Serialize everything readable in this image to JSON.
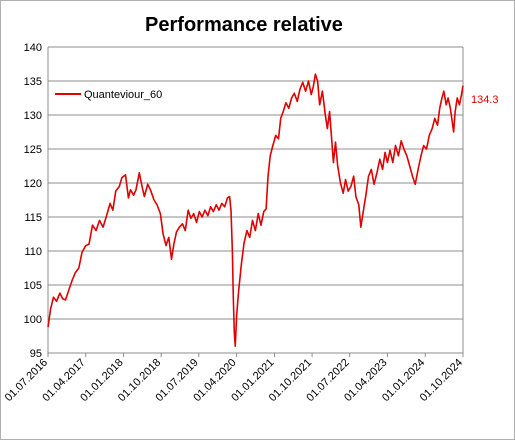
{
  "chart_data": {
    "type": "line",
    "title": "Performance relative",
    "xlabel": "",
    "ylabel": "",
    "ylim": [
      95,
      140
    ],
    "yticks": [
      95,
      100,
      105,
      110,
      115,
      120,
      125,
      130,
      135,
      140
    ],
    "xlim": [
      "2016-07-01",
      "2024-10-01"
    ],
    "xticks": [
      "01.07.2016",
      "01.04.2017",
      "01.01.2018",
      "01.10.2018",
      "01.07.2019",
      "01.04.2020",
      "01.01.2021",
      "01.10.2021",
      "01.07.2022",
      "01.04.2023",
      "01.01.2024",
      "01.10.2024"
    ],
    "grid": "horizontal",
    "legend_position": "top-left",
    "series": [
      {
        "name": "Quanteviour_60",
        "color": "#e00000",
        "last_value_label": "134.3",
        "points": [
          [
            "2016-07-01",
            98.8
          ],
          [
            "2016-07-20",
            101.5
          ],
          [
            "2016-08-10",
            103.2
          ],
          [
            "2016-09-01",
            102.6
          ],
          [
            "2016-09-25",
            103.8
          ],
          [
            "2016-10-15",
            103.0
          ],
          [
            "2016-11-05",
            102.8
          ],
          [
            "2016-11-25",
            104.0
          ],
          [
            "2016-12-20",
            105.5
          ],
          [
            "2017-01-15",
            106.8
          ],
          [
            "2017-02-10",
            107.5
          ],
          [
            "2017-03-05",
            109.8
          ],
          [
            "2017-04-01",
            110.8
          ],
          [
            "2017-04-25",
            111.0
          ],
          [
            "2017-05-20",
            113.8
          ],
          [
            "2017-06-15",
            113.0
          ],
          [
            "2017-07-10",
            114.5
          ],
          [
            "2017-08-05",
            113.5
          ],
          [
            "2017-09-01",
            115.3
          ],
          [
            "2017-09-25",
            117.0
          ],
          [
            "2017-10-15",
            116.0
          ],
          [
            "2017-11-05",
            118.8
          ],
          [
            "2017-12-01",
            119.5
          ],
          [
            "2017-12-20",
            120.8
          ],
          [
            "2018-01-15",
            121.2
          ],
          [
            "2018-02-05",
            117.8
          ],
          [
            "2018-02-20",
            119.0
          ],
          [
            "2018-03-15",
            118.2
          ],
          [
            "2018-04-01",
            119.0
          ],
          [
            "2018-04-25",
            121.5
          ],
          [
            "2018-05-15",
            119.5
          ],
          [
            "2018-06-01",
            118.0
          ],
          [
            "2018-06-25",
            119.8
          ],
          [
            "2018-07-15",
            119.0
          ],
          [
            "2018-08-10",
            117.5
          ],
          [
            "2018-09-01",
            116.8
          ],
          [
            "2018-09-25",
            115.5
          ],
          [
            "2018-10-15",
            112.5
          ],
          [
            "2018-11-05",
            110.8
          ],
          [
            "2018-11-25",
            112.0
          ],
          [
            "2018-12-15",
            108.8
          ],
          [
            "2019-01-01",
            111.0
          ],
          [
            "2019-01-20",
            112.8
          ],
          [
            "2019-02-10",
            113.5
          ],
          [
            "2019-03-05",
            114.0
          ],
          [
            "2019-03-25",
            113.0
          ],
          [
            "2019-04-15",
            116.0
          ],
          [
            "2019-05-05",
            114.8
          ],
          [
            "2019-05-25",
            115.5
          ],
          [
            "2019-06-15",
            114.2
          ],
          [
            "2019-07-05",
            115.8
          ],
          [
            "2019-07-25",
            115.0
          ],
          [
            "2019-08-15",
            116.0
          ],
          [
            "2019-09-05",
            115.2
          ],
          [
            "2019-09-25",
            116.5
          ],
          [
            "2019-10-15",
            115.8
          ],
          [
            "2019-11-05",
            116.8
          ],
          [
            "2019-11-25",
            116.0
          ],
          [
            "2019-12-15",
            117.0
          ],
          [
            "2020-01-05",
            116.5
          ],
          [
            "2020-01-25",
            117.8
          ],
          [
            "2020-02-10",
            118.0
          ],
          [
            "2020-02-20",
            116.0
          ],
          [
            "2020-03-01",
            110.0
          ],
          [
            "2020-03-08",
            103.0
          ],
          [
            "2020-03-15",
            98.0
          ],
          [
            "2020-03-22",
            96.0
          ],
          [
            "2020-04-01",
            100.5
          ],
          [
            "2020-04-15",
            104.0
          ],
          [
            "2020-05-05",
            108.0
          ],
          [
            "2020-05-25",
            111.2
          ],
          [
            "2020-06-15",
            113.0
          ],
          [
            "2020-07-05",
            112.0
          ],
          [
            "2020-07-25",
            114.5
          ],
          [
            "2020-08-15",
            113.0
          ],
          [
            "2020-09-05",
            115.5
          ],
          [
            "2020-09-25",
            113.8
          ],
          [
            "2020-10-15",
            115.8
          ],
          [
            "2020-11-01",
            116.2
          ],
          [
            "2020-11-15",
            121.0
          ],
          [
            "2020-12-01",
            124.0
          ],
          [
            "2020-12-20",
            125.5
          ],
          [
            "2021-01-10",
            127.0
          ],
          [
            "2021-01-30",
            126.5
          ],
          [
            "2021-02-15",
            129.5
          ],
          [
            "2021-03-05",
            130.5
          ],
          [
            "2021-03-25",
            131.8
          ],
          [
            "2021-04-15",
            131.0
          ],
          [
            "2021-05-05",
            132.5
          ],
          [
            "2021-05-25",
            133.2
          ],
          [
            "2021-06-15",
            132.0
          ],
          [
            "2021-07-05",
            133.8
          ],
          [
            "2021-07-25",
            134.8
          ],
          [
            "2021-08-15",
            133.5
          ],
          [
            "2021-09-05",
            135.0
          ],
          [
            "2021-09-25",
            133.0
          ],
          [
            "2021-10-10",
            134.2
          ],
          [
            "2021-10-25",
            136.0
          ],
          [
            "2021-11-10",
            135.0
          ],
          [
            "2021-11-25",
            131.5
          ],
          [
            "2021-12-15",
            133.5
          ],
          [
            "2022-01-05",
            130.0
          ],
          [
            "2022-01-20",
            128.0
          ],
          [
            "2022-02-05",
            130.5
          ],
          [
            "2022-02-20",
            126.5
          ],
          [
            "2022-03-05",
            123.0
          ],
          [
            "2022-03-20",
            126.0
          ],
          [
            "2022-04-05",
            122.5
          ],
          [
            "2022-04-25",
            120.0
          ],
          [
            "2022-05-15",
            118.5
          ],
          [
            "2022-06-01",
            120.5
          ],
          [
            "2022-06-20",
            118.8
          ],
          [
            "2022-07-10",
            119.5
          ],
          [
            "2022-07-30",
            121.0
          ],
          [
            "2022-08-15",
            118.0
          ],
          [
            "2022-09-05",
            116.8
          ],
          [
            "2022-09-20",
            113.5
          ],
          [
            "2022-10-05",
            115.5
          ],
          [
            "2022-10-25",
            118.0
          ],
          [
            "2022-11-15",
            121.0
          ],
          [
            "2022-12-05",
            122.0
          ],
          [
            "2022-12-25",
            119.8
          ],
          [
            "2023-01-15",
            121.5
          ],
          [
            "2023-02-05",
            123.5
          ],
          [
            "2023-02-25",
            122.0
          ],
          [
            "2023-03-15",
            124.5
          ],
          [
            "2023-04-01",
            123.0
          ],
          [
            "2023-04-20",
            124.8
          ],
          [
            "2023-05-10",
            123.0
          ],
          [
            "2023-05-30",
            125.5
          ],
          [
            "2023-06-20",
            124.0
          ],
          [
            "2023-07-10",
            126.2
          ],
          [
            "2023-07-30",
            125.0
          ],
          [
            "2023-08-20",
            124.0
          ],
          [
            "2023-09-10",
            122.5
          ],
          [
            "2023-09-30",
            121.0
          ],
          [
            "2023-10-20",
            119.8
          ],
          [
            "2023-11-10",
            122.0
          ],
          [
            "2023-12-01",
            124.0
          ],
          [
            "2023-12-20",
            125.5
          ],
          [
            "2024-01-10",
            125.0
          ],
          [
            "2024-01-30",
            127.0
          ],
          [
            "2024-02-20",
            128.0
          ],
          [
            "2024-03-10",
            129.5
          ],
          [
            "2024-03-30",
            128.5
          ],
          [
            "2024-04-15",
            131.0
          ],
          [
            "2024-05-01",
            132.5
          ],
          [
            "2024-05-15",
            133.5
          ],
          [
            "2024-06-01",
            131.5
          ],
          [
            "2024-06-15",
            132.5
          ],
          [
            "2024-07-01",
            131.0
          ],
          [
            "2024-07-15",
            129.0
          ],
          [
            "2024-07-25",
            127.5
          ],
          [
            "2024-08-05",
            130.5
          ],
          [
            "2024-08-20",
            132.5
          ],
          [
            "2024-09-05",
            131.5
          ],
          [
            "2024-09-20",
            133.0
          ],
          [
            "2024-10-01",
            134.3
          ]
        ]
      }
    ]
  }
}
